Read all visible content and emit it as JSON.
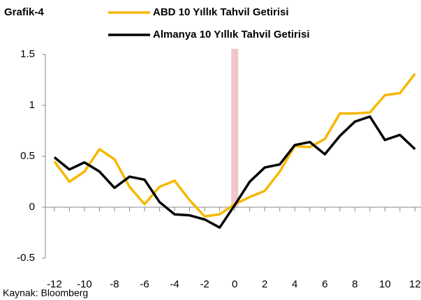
{
  "chart_data": {
    "type": "line",
    "title": "Grafik-4",
    "source": "Kaynak: Bloomberg",
    "x": [
      -12,
      -11,
      -10,
      -9,
      -8,
      -7,
      -6,
      -5,
      -4,
      -3,
      -2,
      -1,
      0,
      1,
      2,
      3,
      4,
      5,
      6,
      7,
      8,
      9,
      10,
      11,
      12
    ],
    "series": [
      {
        "name": "ABD 10 Yıllık Tahvil Getirisi",
        "color": "#f5b800",
        "values": [
          0.45,
          0.25,
          0.35,
          0.57,
          0.47,
          0.2,
          0.03,
          0.2,
          0.26,
          0.07,
          -0.09,
          -0.07,
          0.03,
          0.1,
          0.16,
          0.35,
          0.6,
          0.59,
          0.67,
          0.92,
          0.92,
          0.93,
          1.1,
          1.12,
          1.31
        ]
      },
      {
        "name": "Almanya 10 Yıllık Tahvil Getirisi",
        "color": "#000000",
        "values": [
          0.49,
          0.37,
          0.44,
          0.35,
          0.19,
          0.3,
          0.27,
          0.05,
          -0.07,
          -0.08,
          -0.12,
          -0.2,
          0.02,
          0.25,
          0.39,
          0.42,
          0.61,
          0.64,
          0.52,
          0.7,
          0.84,
          0.89,
          0.66,
          0.71,
          0.57
        ]
      }
    ],
    "xlim": [
      -12.6,
      12.4
    ],
    "xticks": [
      -12,
      -10,
      -8,
      -6,
      -4,
      -2,
      0,
      2,
      4,
      6,
      8,
      10,
      12
    ],
    "xminorticks": [
      -12,
      -11,
      -10,
      -9,
      -8,
      -7,
      -6,
      -5,
      -4,
      -3,
      -2,
      -1,
      0,
      1,
      2,
      3,
      4,
      5,
      6,
      7,
      8,
      9,
      10,
      11,
      12
    ],
    "ylim": [
      -0.5,
      1.5
    ],
    "yticks": [
      -0.5,
      0,
      0.5,
      1,
      1.5
    ],
    "vline": 0,
    "vline_color": "#e8a0a8",
    "legend": "top"
  }
}
